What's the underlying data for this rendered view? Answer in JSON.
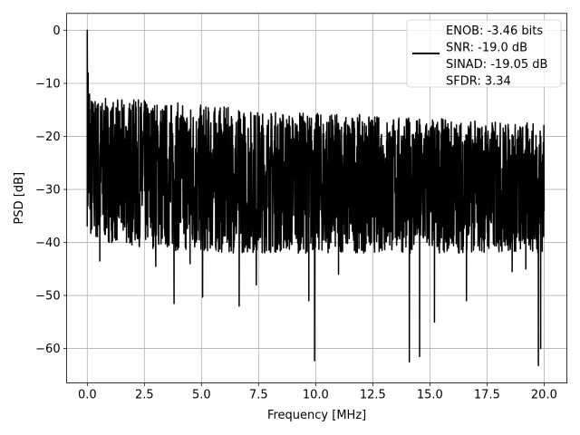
{
  "chart_data": {
    "type": "line",
    "title": "",
    "xlabel": "Frequency [MHz]",
    "ylabel": "PSD [dB]",
    "xlim": [
      -0.9,
      21.0
    ],
    "ylim": [
      -66.5,
      3.2
    ],
    "grid": true,
    "legend_position": "top-right",
    "x_ticks": [
      0.0,
      2.5,
      5.0,
      7.5,
      10.0,
      12.5,
      15.0,
      17.5,
      20.0
    ],
    "x_tick_labels": [
      "0.0",
      "2.5",
      "5.0",
      "7.5",
      "10.0",
      "12.5",
      "15.0",
      "17.5",
      "20.0"
    ],
    "y_ticks": [
      0,
      -10,
      -20,
      -30,
      -40,
      -50,
      -60
    ],
    "y_tick_labels": [
      "0",
      "−10",
      "−20",
      "−30",
      "−40",
      "−50",
      "−60"
    ],
    "series": [
      {
        "name": "ENOB: -3.46 bits\nSNR: -19.0 dB\nSINAD: -19.05 dB\nSFDR: 3.34",
        "color": "#000000",
        "envelope": {
          "x": [
            0.0,
            0.2,
            1.0,
            2.5,
            5.0,
            7.5,
            10.0,
            12.5,
            15.0,
            17.5,
            20.0
          ],
          "upper": [
            -10.0,
            -12.0,
            -13.0,
            -13.0,
            -14.0,
            -15.0,
            -15.5,
            -16.0,
            -16.5,
            -17.0,
            -17.5
          ],
          "lower": [
            -37.0,
            -40.0,
            -40.0,
            -41.0,
            -42.0,
            -42.0,
            -42.0,
            -42.0,
            -42.0,
            -42.0,
            -42.0
          ]
        },
        "peaks": [
          {
            "x": 0.0,
            "y": 0.0
          },
          {
            "x": 0.04,
            "y": -8.0
          },
          {
            "x": 0.1,
            "y": -12.0
          }
        ],
        "dips": [
          {
            "x": 0.55,
            "y": -43.5
          },
          {
            "x": 3.0,
            "y": -44.5
          },
          {
            "x": 3.8,
            "y": -51.5
          },
          {
            "x": 4.5,
            "y": -44.0
          },
          {
            "x": 5.05,
            "y": -50.3
          },
          {
            "x": 6.65,
            "y": -52.0
          },
          {
            "x": 7.4,
            "y": -48.0
          },
          {
            "x": 9.7,
            "y": -51.0
          },
          {
            "x": 9.95,
            "y": -62.3
          },
          {
            "x": 11.0,
            "y": -46.0
          },
          {
            "x": 14.1,
            "y": -62.5
          },
          {
            "x": 14.55,
            "y": -61.5
          },
          {
            "x": 15.2,
            "y": -55.0
          },
          {
            "x": 16.6,
            "y": -51.0
          },
          {
            "x": 18.6,
            "y": -45.5
          },
          {
            "x": 19.2,
            "y": -45.0
          },
          {
            "x": 19.75,
            "y": -63.2
          },
          {
            "x": 19.85,
            "y": -60.0
          }
        ],
        "samples": 2200
      }
    ]
  }
}
